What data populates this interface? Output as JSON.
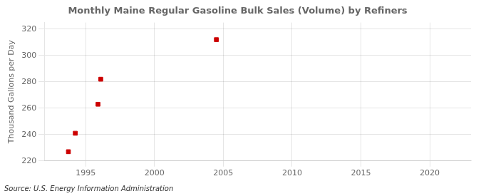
{
  "chart_data": {
    "type": "scatter",
    "title": "Monthly Maine Regular Gasoline Bulk Sales (Volume) by Refiners",
    "ylabel": "Thousand Gallons per Day",
    "source": "Source: U.S. Energy Information Administration",
    "x": [
      1993.75,
      1994.25,
      1995.9,
      1996.1,
      2004.5
    ],
    "values": [
      227,
      241,
      263,
      282,
      312
    ],
    "color": "#cc0000",
    "marker": "square",
    "xlim": [
      1992,
      2023
    ],
    "ylim": [
      220,
      325
    ],
    "xticks": [
      1995,
      2000,
      2005,
      2010,
      2015,
      2020
    ],
    "yticks": [
      220,
      240,
      260,
      280,
      300,
      320
    ],
    "grid": true
  }
}
